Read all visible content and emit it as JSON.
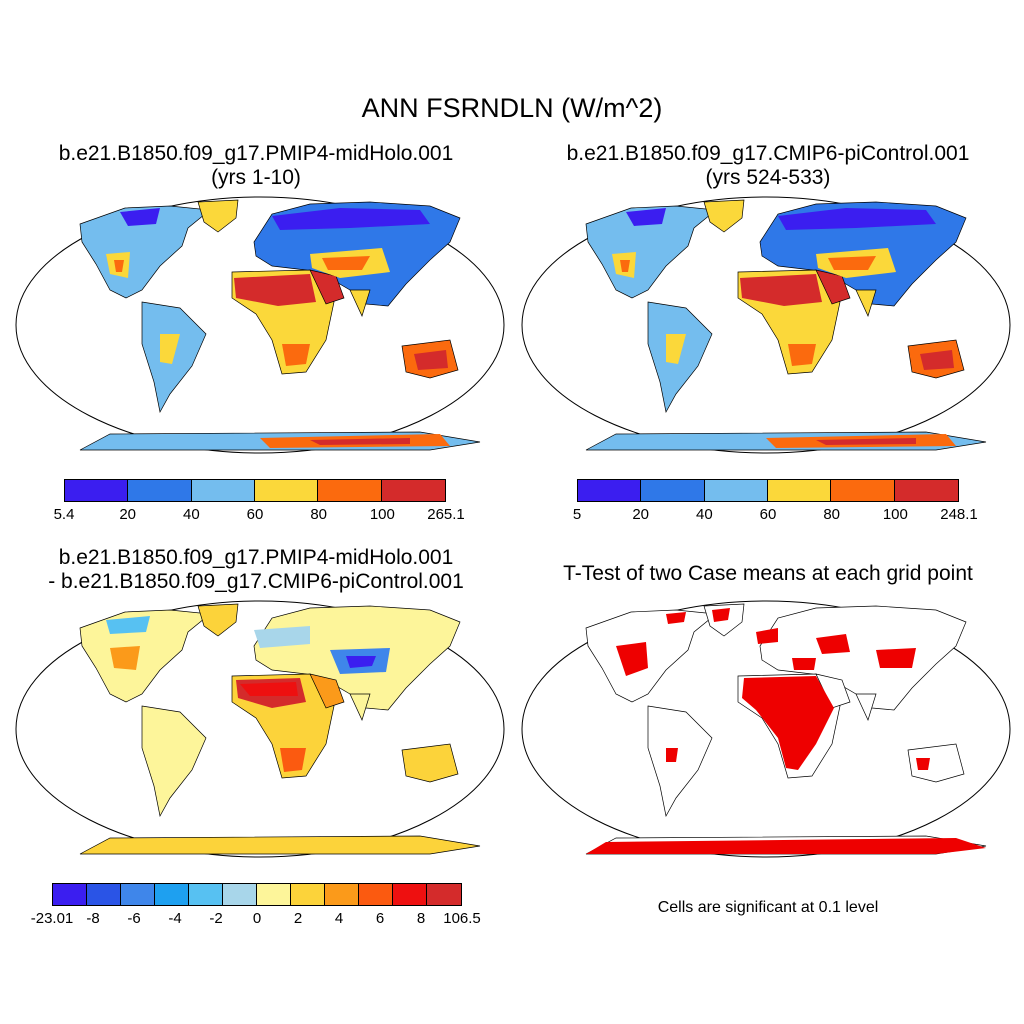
{
  "title": "ANN FSRNDLN (W/m^2)",
  "panels": [
    {
      "name": "case",
      "title_line1": "b.e21.B1850.f09_g17.PMIP4-midHolo.001",
      "title_line2": "(yrs 1-10)",
      "colorbar": {
        "colors": [
          "#3b1ef0",
          "#2f78e8",
          "#74bdee",
          "#fbd83a",
          "#fb6a0e",
          "#d42b2b"
        ],
        "labels": [
          "5.4",
          "20",
          "40",
          "60",
          "80",
          "100",
          "265.1"
        ]
      }
    },
    {
      "name": "control",
      "title_line1": "b.e21.B1850.f09_g17.CMIP6-piControl.001",
      "title_line2": "(yrs 524-533)",
      "colorbar": {
        "colors": [
          "#3b1ef0",
          "#2f78e8",
          "#74bdee",
          "#fbd83a",
          "#fb6a0e",
          "#d42b2b"
        ],
        "labels": [
          "5",
          "20",
          "40",
          "60",
          "80",
          "100",
          "248.1"
        ]
      }
    },
    {
      "name": "difference",
      "title_line1": "b.e21.B1850.f09_g17.PMIP4-midHolo.001",
      "title_line2": "- b.e21.B1850.f09_g17.CMIP6-piControl.001",
      "colorbar": {
        "colors": [
          "#3b1ef0",
          "#2a54e6",
          "#3f86ea",
          "#1ea0f0",
          "#57c1f2",
          "#a8d6ea",
          "#fdf59a",
          "#fcd33a",
          "#fb9a1a",
          "#fb5a10",
          "#ee1010",
          "#d42b2b"
        ],
        "labels": [
          "-23.01",
          "-8",
          "-6",
          "-4",
          "-2",
          "0",
          "2",
          "4",
          "6",
          "8",
          "106.5"
        ]
      }
    },
    {
      "name": "ttest",
      "title_line1": "T-Test of two Case means at each grid point",
      "note": "Cells are significant at 0.1 level",
      "significant_color": "#ee0000"
    }
  ]
}
